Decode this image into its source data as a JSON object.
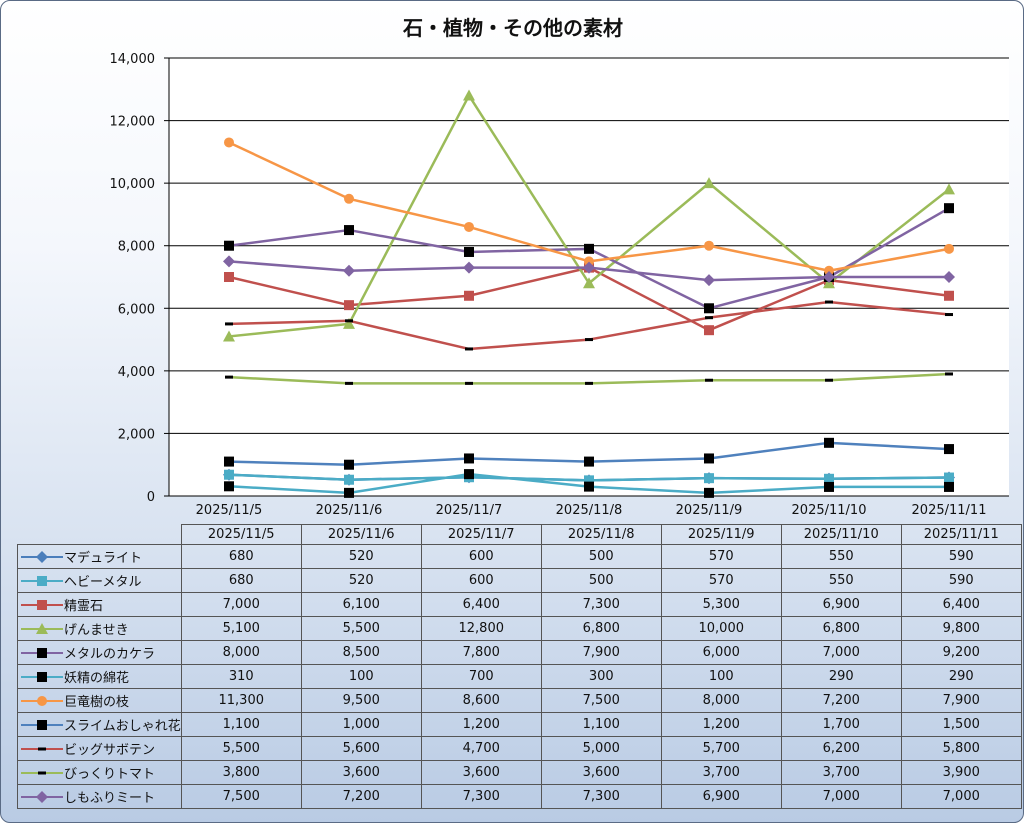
{
  "chart_data": {
    "type": "line",
    "title": "石・植物・その他の素材",
    "xlabel": "",
    "ylabel": "",
    "ylim": [
      0,
      14000
    ],
    "yticks": [
      "0",
      "2,000",
      "4,000",
      "6,000",
      "8,000",
      "10,000",
      "12,000",
      "14,000"
    ],
    "categories": [
      "2025/11/5",
      "2025/11/6",
      "2025/11/7",
      "2025/11/8",
      "2025/11/9",
      "2025/11/10",
      "2025/11/11"
    ],
    "legend": "data-table",
    "series": [
      {
        "name": "マデュライト",
        "values": [
          680,
          520,
          600,
          500,
          570,
          550,
          590
        ],
        "labels": [
          "680",
          "520",
          "600",
          "500",
          "570",
          "550",
          "590"
        ],
        "color": "#4a7ebb",
        "marker": "diamond",
        "marker_color": "#4a7ebb"
      },
      {
        "name": "ヘビーメタル",
        "values": [
          680,
          520,
          600,
          500,
          570,
          550,
          590
        ],
        "labels": [
          "680",
          "520",
          "600",
          "500",
          "570",
          "550",
          "590"
        ],
        "color": "#4bacc6",
        "marker": "square",
        "marker_color": "#4bacc6"
      },
      {
        "name": "精霊石",
        "values": [
          7000,
          6100,
          6400,
          7300,
          5300,
          6900,
          6400
        ],
        "labels": [
          "7,000",
          "6,100",
          "6,400",
          "7,300",
          "5,300",
          "6,900",
          "6,400"
        ],
        "color": "#c0504d",
        "marker": "square",
        "marker_color": "#c0504d"
      },
      {
        "name": "げんませき",
        "values": [
          5100,
          5500,
          12800,
          6800,
          10000,
          6800,
          9800
        ],
        "labels": [
          "5,100",
          "5,500",
          "12,800",
          "6,800",
          "10,000",
          "6,800",
          "9,800"
        ],
        "color": "#9bbb59",
        "marker": "triangle",
        "marker_color": "#9bbb59"
      },
      {
        "name": "メタルのカケラ",
        "values": [
          8000,
          8500,
          7800,
          7900,
          6000,
          7000,
          9200
        ],
        "labels": [
          "8,000",
          "8,500",
          "7,800",
          "7,900",
          "6,000",
          "7,000",
          "9,200"
        ],
        "color": "#8064a2",
        "marker": "square",
        "marker_color": "#000000"
      },
      {
        "name": "妖精の綿花",
        "values": [
          310,
          100,
          700,
          300,
          100,
          290,
          290
        ],
        "labels": [
          "310",
          "100",
          "700",
          "300",
          "100",
          "290",
          "290"
        ],
        "color": "#4bacc6",
        "marker": "square",
        "marker_color": "#000000"
      },
      {
        "name": "巨竜樹の枝",
        "values": [
          11300,
          9500,
          8600,
          7500,
          8000,
          7200,
          7900
        ],
        "labels": [
          "11,300",
          "9,500",
          "8,600",
          "7,500",
          "8,000",
          "7,200",
          "7,900"
        ],
        "color": "#f79646",
        "marker": "circle",
        "marker_color": "#f79646"
      },
      {
        "name": "スライムおしゃれ花",
        "values": [
          1100,
          1000,
          1200,
          1100,
          1200,
          1700,
          1500
        ],
        "labels": [
          "1,100",
          "1,000",
          "1,200",
          "1,100",
          "1,200",
          "1,700",
          "1,500"
        ],
        "color": "#4f81bd",
        "marker": "square",
        "marker_color": "#000000"
      },
      {
        "name": "ビッグサボテン",
        "values": [
          5500,
          5600,
          4700,
          5000,
          5700,
          6200,
          5800
        ],
        "labels": [
          "5,500",
          "5,600",
          "4,700",
          "5,000",
          "5,700",
          "6,200",
          "5,800"
        ],
        "color": "#c0504d",
        "marker": "dash",
        "marker_color": "#000000"
      },
      {
        "name": "びっくりトマト",
        "values": [
          3800,
          3600,
          3600,
          3600,
          3700,
          3700,
          3900
        ],
        "labels": [
          "3,800",
          "3,600",
          "3,600",
          "3,600",
          "3,700",
          "3,700",
          "3,900"
        ],
        "color": "#9bbb59",
        "marker": "dash",
        "marker_color": "#000000"
      },
      {
        "name": "しもふりミート",
        "values": [
          7500,
          7200,
          7300,
          7300,
          6900,
          7000,
          7000
        ],
        "labels": [
          "7,500",
          "7,200",
          "7,300",
          "7,300",
          "6,900",
          "7,000",
          "7,000"
        ],
        "color": "#8064a2",
        "marker": "diamond",
        "marker_color": "#8064a2"
      }
    ]
  }
}
